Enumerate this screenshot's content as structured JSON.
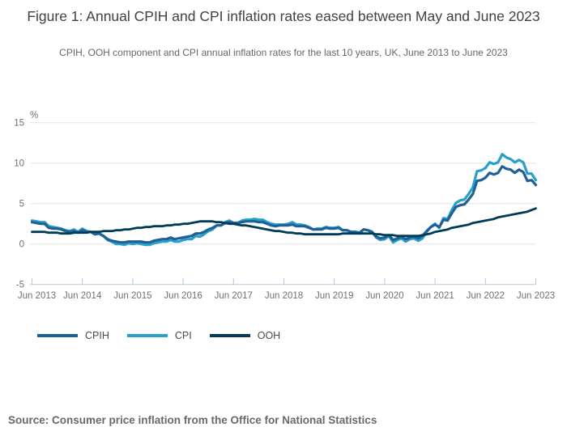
{
  "page": {
    "title": "Figure 1: Annual CPIH and CPI inflation rates eased between May and June 2023",
    "subtitle": "CPIH, OOH component and CPI annual inflation rates for the last 10 years, UK, June 2013 to June 2023",
    "source": "Source: Consumer price inflation from the Office for National Statistics"
  },
  "colors": {
    "cpih": "#206095",
    "cpi": "#27a0cc",
    "ooh": "#003c57",
    "gridline": "#e3e3e3",
    "axis_line": "#b5c7d8",
    "title_text": "#414042",
    "subtitle_text": "#666668",
    "axis_text": "#707071",
    "source_text": "#68696b"
  },
  "chart_data": {
    "type": "line",
    "title": "Figure 1: Annual CPIH and CPI inflation rates eased between May and June 2023",
    "subtitle": "CPIH, OOH component and CPI annual inflation rates for the last 10 years, UK, June 2013 to June 2023",
    "unit_label": "%",
    "frequency": "monthly",
    "x_start": "Jun 2013",
    "x_end": "Jun 2023",
    "x_tick_labels": [
      "Jun 2013",
      "Jun 2014",
      "Jun 2015",
      "Jun 2016",
      "Jun 2017",
      "Jun 2018",
      "Jun 2019",
      "Jun 2020",
      "Jun 2021",
      "Jun 2022",
      "Jun 2023"
    ],
    "y_ticks": [
      15,
      10,
      5,
      0,
      -5
    ],
    "gridline_values": [
      15,
      10,
      5,
      0
    ],
    "ylim": [
      -5,
      15
    ],
    "grid": "horizontal-only",
    "legend_position": "bottom-left",
    "draw_order": [
      "CPI",
      "CPIH",
      "OOH"
    ],
    "series": [
      {
        "name": "CPIH",
        "color": "#206095",
        "values": [
          2.7,
          2.6,
          2.5,
          2.5,
          2.0,
          1.9,
          1.9,
          1.8,
          1.6,
          1.5,
          1.6,
          1.4,
          1.7,
          1.5,
          1.5,
          1.2,
          1.3,
          1.0,
          0.6,
          0.4,
          0.3,
          0.2,
          0.2,
          0.3,
          0.3,
          0.3,
          0.3,
          0.2,
          0.2,
          0.4,
          0.5,
          0.6,
          0.6,
          0.8,
          0.6,
          0.7,
          0.8,
          0.9,
          1.0,
          1.3,
          1.3,
          1.5,
          1.8,
          2.0,
          2.3,
          2.3,
          2.6,
          2.7,
          2.6,
          2.6,
          2.7,
          2.8,
          2.8,
          2.8,
          2.7,
          2.7,
          2.5,
          2.3,
          2.2,
          2.3,
          2.3,
          2.3,
          2.4,
          2.2,
          2.2,
          2.2,
          2.0,
          1.8,
          1.8,
          1.8,
          2.0,
          1.9,
          1.9,
          2.0,
          1.7,
          1.7,
          1.5,
          1.5,
          1.4,
          1.8,
          1.7,
          1.5,
          0.9,
          0.7,
          0.8,
          1.1,
          0.5,
          0.7,
          0.9,
          0.6,
          0.8,
          0.9,
          0.7,
          1.0,
          1.6,
          2.1,
          2.4,
          2.1,
          3.0,
          2.9,
          3.8,
          4.6,
          4.8,
          4.9,
          5.5,
          6.2,
          7.8,
          7.9,
          8.2,
          8.8,
          8.6,
          8.8,
          9.6,
          9.3,
          9.2,
          8.8,
          9.2,
          8.9,
          7.8,
          7.9,
          7.3
        ]
      },
      {
        "name": "CPI",
        "color": "#27a0cc",
        "values": [
          2.9,
          2.8,
          2.7,
          2.7,
          2.2,
          2.1,
          2.0,
          1.9,
          1.7,
          1.6,
          1.8,
          1.5,
          1.9,
          1.6,
          1.5,
          1.2,
          1.3,
          1.0,
          0.5,
          0.3,
          0.0,
          0.0,
          -0.1,
          0.1,
          0.0,
          0.1,
          0.0,
          -0.1,
          -0.1,
          0.1,
          0.2,
          0.3,
          0.3,
          0.5,
          0.3,
          0.3,
          0.5,
          0.6,
          0.6,
          1.0,
          0.9,
          1.2,
          1.6,
          1.8,
          2.3,
          2.3,
          2.7,
          2.9,
          2.6,
          2.6,
          2.9,
          3.0,
          3.0,
          3.1,
          3.0,
          3.0,
          2.7,
          2.5,
          2.4,
          2.4,
          2.4,
          2.5,
          2.7,
          2.4,
          2.4,
          2.3,
          2.1,
          1.8,
          1.9,
          1.9,
          2.1,
          2.0,
          2.0,
          2.1,
          1.7,
          1.7,
          1.5,
          1.5,
          1.3,
          1.8,
          1.7,
          1.5,
          0.8,
          0.5,
          0.6,
          1.0,
          0.2,
          0.5,
          0.7,
          0.3,
          0.6,
          0.7,
          0.4,
          0.7,
          1.5,
          2.1,
          2.5,
          2.0,
          3.2,
          3.1,
          4.2,
          5.1,
          5.4,
          5.5,
          6.2,
          7.0,
          9.0,
          9.1,
          9.4,
          10.1,
          9.9,
          10.1,
          11.1,
          10.7,
          10.5,
          10.1,
          10.4,
          10.1,
          8.7,
          8.7,
          7.9
        ]
      },
      {
        "name": "OOH",
        "color": "#003c57",
        "values": [
          1.5,
          1.5,
          1.5,
          1.5,
          1.4,
          1.4,
          1.4,
          1.3,
          1.3,
          1.3,
          1.4,
          1.4,
          1.4,
          1.4,
          1.5,
          1.5,
          1.5,
          1.6,
          1.6,
          1.6,
          1.7,
          1.7,
          1.8,
          1.8,
          1.9,
          2.0,
          2.0,
          2.1,
          2.1,
          2.2,
          2.2,
          2.2,
          2.3,
          2.3,
          2.4,
          2.4,
          2.5,
          2.5,
          2.6,
          2.7,
          2.8,
          2.8,
          2.8,
          2.8,
          2.7,
          2.7,
          2.6,
          2.5,
          2.5,
          2.4,
          2.3,
          2.3,
          2.2,
          2.1,
          2.0,
          1.9,
          1.8,
          1.7,
          1.6,
          1.6,
          1.5,
          1.4,
          1.4,
          1.3,
          1.3,
          1.2,
          1.2,
          1.2,
          1.2,
          1.2,
          1.2,
          1.2,
          1.2,
          1.2,
          1.3,
          1.3,
          1.3,
          1.3,
          1.3,
          1.3,
          1.3,
          1.3,
          1.2,
          1.2,
          1.1,
          1.1,
          1.1,
          1.0,
          1.0,
          1.0,
          1.0,
          1.0,
          1.0,
          1.1,
          1.2,
          1.3,
          1.5,
          1.6,
          1.7,
          1.8,
          2.0,
          2.1,
          2.2,
          2.3,
          2.4,
          2.6,
          2.7,
          2.8,
          2.9,
          3.0,
          3.1,
          3.3,
          3.4,
          3.5,
          3.6,
          3.7,
          3.8,
          3.9,
          4.0,
          4.2,
          4.4
        ]
      }
    ]
  }
}
